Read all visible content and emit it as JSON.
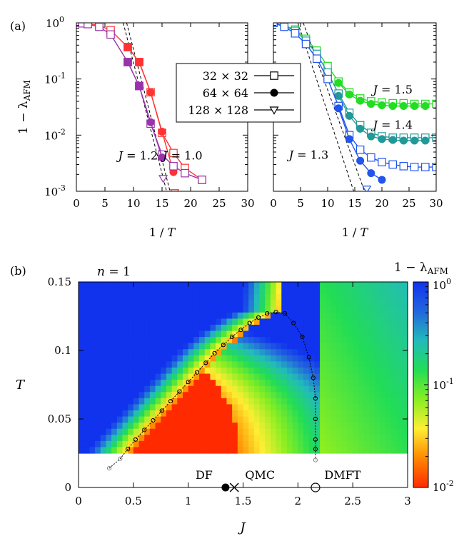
{
  "chart_data": [
    {
      "panel": "(a) left",
      "type": "line",
      "xlabel_prefix": "1 / ",
      "xlabel_var": "T",
      "ylabel_prefix": "1 − λ",
      "ylabel_sub": "AFM",
      "xlim": [
        0,
        30
      ],
      "ylim": [
        0.001,
        1
      ],
      "yscale": "log",
      "x_ticks": [
        "0",
        "5",
        "10",
        "15",
        "20",
        "25",
        "30"
      ],
      "annotations": [
        {
          "var": "J",
          "text": " = 1.2",
          "x": 10.8,
          "y": 0.0037
        },
        {
          "var": "J",
          "text": " = 1.0",
          "x": 18.6,
          "y": 0.0037
        }
      ],
      "series": [
        {
          "name": "J=1.0 32x32",
          "color": "#ff3333",
          "marker": "open-square",
          "x": [
            0,
            1,
            2,
            4,
            6,
            9,
            11,
            13,
            15,
            17,
            19,
            22
          ],
          "y": [
            1,
            0.99,
            0.97,
            0.9,
            0.74,
            0.37,
            0.2,
            0.058,
            0.011,
            0.0048,
            0.0026,
            0.0016
          ]
        },
        {
          "name": "J=1.0 64x64",
          "color": "#ff3333",
          "marker": "filled-circle",
          "x": [
            9,
            11,
            13,
            15,
            17
          ],
          "y": [
            0.37,
            0.2,
            0.058,
            0.0115,
            0.0022
          ]
        },
        {
          "name": "J=1.0 128x128",
          "color": "#ff3333",
          "marker": "open-triangle",
          "x": [
            17.2
          ],
          "y": [
            0.00095
          ]
        },
        {
          "name": "J=1.2 32x32",
          "color": "#9933aa",
          "marker": "open-square",
          "x": [
            0,
            1,
            2,
            4,
            6,
            9,
            11,
            13,
            15,
            17,
            19,
            22
          ],
          "y": [
            1,
            0.98,
            0.95,
            0.85,
            0.62,
            0.2,
            0.075,
            0.016,
            0.0045,
            0.0028,
            0.0021,
            0.0016
          ]
        },
        {
          "name": "J=1.2 64x64",
          "color": "#9933aa",
          "marker": "filled-circle",
          "x": [
            9,
            11,
            13,
            15
          ],
          "y": [
            0.2,
            0.075,
            0.017,
            0.004
          ]
        },
        {
          "name": "J=1.2 128x128",
          "color": "#9933aa",
          "marker": "open-triangle",
          "x": [
            15.2
          ],
          "y": [
            0.0017
          ]
        }
      ],
      "guides": [
        {
          "x": [
            8.2,
            15.8
          ],
          "y": [
            1,
            0.001
          ]
        },
        {
          "x": [
            8.8,
            16.4
          ],
          "y": [
            1,
            0.001
          ]
        }
      ]
    },
    {
      "panel": "(a) right",
      "type": "line",
      "xlabel_prefix": "1 / ",
      "xlabel_var": "T",
      "xlim": [
        0,
        30
      ],
      "ylim": [
        0.001,
        1
      ],
      "yscale": "log",
      "x_ticks": [
        "0",
        "5",
        "10",
        "15",
        "20",
        "25",
        "30"
      ],
      "legend": [
        {
          "label": "32 × 32",
          "marker": "open-square"
        },
        {
          "label": "64 × 64",
          "marker": "filled-circle"
        },
        {
          "label": "128 × 128",
          "marker": "open-triangle"
        }
      ],
      "annotations": [
        {
          "var": "J",
          "text": " = 1.5",
          "x": 22,
          "y": 0.055
        },
        {
          "var": "J",
          "text": " = 1.4",
          "x": 22,
          "y": 0.013
        },
        {
          "var": "J",
          "text": " = 1.3",
          "x": 6.5,
          "y": 0.0038
        }
      ],
      "series": [
        {
          "name": "J=1.5 32x32",
          "color": "#22dd22",
          "marker": "open-square",
          "x": [
            0,
            2,
            4,
            6,
            8,
            10,
            12,
            14,
            16,
            18,
            20,
            22,
            24,
            26,
            28,
            30
          ],
          "y": [
            1,
            0.9,
            0.76,
            0.52,
            0.32,
            0.17,
            0.09,
            0.058,
            0.045,
            0.04,
            0.038,
            0.037,
            0.037,
            0.036,
            0.036,
            0.036
          ]
        },
        {
          "name": "J=1.5 64x64",
          "color": "#22dd22",
          "marker": "filled-circle",
          "x": [
            12,
            14,
            16,
            18,
            20,
            22,
            24,
            26,
            28
          ],
          "y": [
            0.085,
            0.053,
            0.041,
            0.036,
            0.034,
            0.033,
            0.033,
            0.033,
            0.033
          ]
        },
        {
          "name": "J=1.4 32x32",
          "color": "#229999",
          "marker": "open-square",
          "x": [
            0,
            2,
            4,
            6,
            8,
            10,
            12,
            14,
            16,
            18,
            20,
            22,
            24,
            26,
            28,
            30
          ],
          "y": [
            1,
            0.88,
            0.72,
            0.48,
            0.28,
            0.13,
            0.055,
            0.025,
            0.015,
            0.011,
            0.0095,
            0.009,
            0.009,
            0.009,
            0.009,
            0.009
          ]
        },
        {
          "name": "J=1.4 64x64",
          "color": "#229999",
          "marker": "filled-circle",
          "x": [
            12,
            14,
            16,
            18,
            20,
            22,
            24,
            26,
            28
          ],
          "y": [
            0.05,
            0.022,
            0.013,
            0.0095,
            0.0085,
            0.0082,
            0.008,
            0.008,
            0.008
          ]
        },
        {
          "name": "J=1.3 32x32",
          "color": "#2255ee",
          "marker": "open-square",
          "x": [
            0,
            2,
            4,
            6,
            8,
            10,
            12,
            14,
            16,
            18,
            20,
            22,
            24,
            26,
            28,
            30
          ],
          "y": [
            1,
            0.85,
            0.65,
            0.42,
            0.23,
            0.1,
            0.033,
            0.01,
            0.0055,
            0.004,
            0.0033,
            0.003,
            0.0028,
            0.0027,
            0.0027,
            0.0027
          ]
        },
        {
          "name": "J=1.3 64x64",
          "color": "#2255ee",
          "marker": "filled-circle",
          "x": [
            12,
            14,
            16,
            18,
            20
          ],
          "y": [
            0.03,
            0.0085,
            0.0035,
            0.0021,
            0.0016
          ]
        },
        {
          "name": "J=1.3 128x128",
          "color": "#2255ee",
          "marker": "open-triangle",
          "x": [
            17.2
          ],
          "y": [
            0.0011
          ]
        }
      ],
      "guides": [
        {
          "x": [
            4.5,
            14.8
          ],
          "y": [
            1,
            0.001
          ]
        },
        {
          "x": [
            5.5,
            16.8
          ],
          "y": [
            1,
            0.001
          ]
        }
      ]
    },
    {
      "panel": "(b)",
      "type": "heatmap",
      "title_var": "n",
      "title_text": " = 1",
      "xlabel": "J",
      "ylabel": "T",
      "xlim": [
        0,
        3
      ],
      "ylim": [
        0,
        0.15
      ],
      "heatmap_tmin": 0.025,
      "x_ticks": [
        "0",
        "0.5",
        "1",
        "1.5",
        "2",
        "2.5",
        "3"
      ],
      "y_ticks": [
        "0",
        "0.05",
        "0.1",
        "0.15"
      ],
      "colorbar": {
        "label_prefix": "1 − λ",
        "label_sub": "AFM",
        "scale": "log",
        "range": [
          0.01,
          1
        ],
        "ticks": [
          {
            "value": 1,
            "base": "10",
            "exp": "0"
          },
          {
            "value": 0.1,
            "base": "10",
            "exp": "-1"
          },
          {
            "value": 0.01,
            "base": "10",
            "exp": "-2"
          }
        ],
        "colors": [
          "#ff2a00",
          "#ff8800",
          "#ffee33",
          "#88ee22",
          "#22dd55",
          "#22bbbb",
          "#2266dd",
          "#1133ee"
        ]
      },
      "phase_boundary": {
        "J": [
          0.28,
          0.38,
          0.45,
          0.52,
          0.6,
          0.68,
          0.76,
          0.84,
          0.92,
          1.0,
          1.08,
          1.16,
          1.24,
          1.32,
          1.4,
          1.48,
          1.56,
          1.64,
          1.72,
          1.8,
          1.88,
          1.96,
          2.04,
          2.1,
          2.14,
          2.16,
          2.16,
          2.16,
          2.16,
          2.16
        ],
        "T": [
          0.014,
          0.021,
          0.028,
          0.035,
          0.042,
          0.049,
          0.056,
          0.063,
          0.07,
          0.077,
          0.084,
          0.091,
          0.098,
          0.104,
          0.11,
          0.115,
          0.12,
          0.124,
          0.127,
          0.128,
          0.127,
          0.12,
          0.11,
          0.095,
          0.08,
          0.065,
          0.05,
          0.035,
          0.028,
          0.02
        ]
      },
      "markers": [
        {
          "label": "DF",
          "J": 1.34,
          "T": 0.0,
          "marker": "filled-circle"
        },
        {
          "label": "QMC",
          "J": 1.42,
          "T": 0.0,
          "marker": "cross"
        },
        {
          "label": "DMFT",
          "J": 2.16,
          "T": 0.0,
          "marker": "open-circle"
        }
      ]
    }
  ],
  "labels": {
    "panel_a": "(a)",
    "panel_b": "(b)"
  },
  "colors": {
    "axis": "#000000",
    "guide": "#000000"
  }
}
